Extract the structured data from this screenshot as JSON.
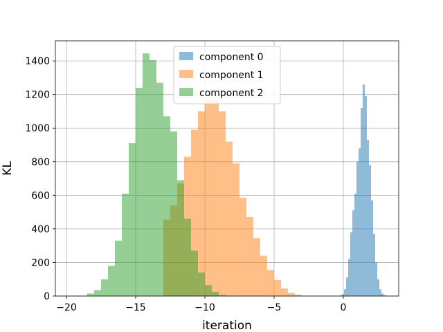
{
  "chart_data": {
    "type": "histogram",
    "xlabel": "iteration",
    "ylabel": "KL",
    "xlim": [
      -20.8,
      4.0
    ],
    "ylim": [
      0,
      1520
    ],
    "xticks": [
      -20,
      -15,
      -10,
      -5,
      0
    ],
    "xtick_labels": [
      "−20",
      "−15",
      "−10",
      "−5",
      "0"
    ],
    "yticks": [
      0,
      200,
      400,
      600,
      800,
      1000,
      1200,
      1400
    ],
    "ytick_labels": [
      "0",
      "200",
      "400",
      "600",
      "800",
      "1000",
      "1200",
      "1400"
    ],
    "grid": true,
    "legend_position": "top-center",
    "series": [
      {
        "name": "component 0",
        "color": "#1f77b4",
        "alpha": 0.5,
        "bin_start": -0.25,
        "bin_width": 0.15,
        "values": [
          4,
          12,
          40,
          110,
          220,
          380,
          510,
          610,
          800,
          880,
          1120,
          1260,
          1190,
          930,
          780,
          570,
          370,
          200,
          100,
          40,
          15,
          5
        ]
      },
      {
        "name": "component 1",
        "color": "#ff7f0e",
        "alpha": 0.5,
        "bin_start": -13.0,
        "bin_width": 0.5,
        "values": [
          455,
          540,
          670,
          830,
          990,
          1100,
          1175,
          1180,
          1100,
          920,
          790,
          585,
          470,
          345,
          240,
          155,
          95,
          45,
          18,
          8
        ]
      },
      {
        "name": "component 2",
        "color": "#2ca02c",
        "alpha": 0.5,
        "bin_start": -18.5,
        "bin_width": 0.5,
        "values": [
          15,
          35,
          100,
          180,
          330,
          610,
          910,
          1240,
          1445,
          1405,
          1270,
          1070,
          980,
          690,
          460,
          270,
          140,
          65,
          25,
          5
        ]
      }
    ]
  }
}
